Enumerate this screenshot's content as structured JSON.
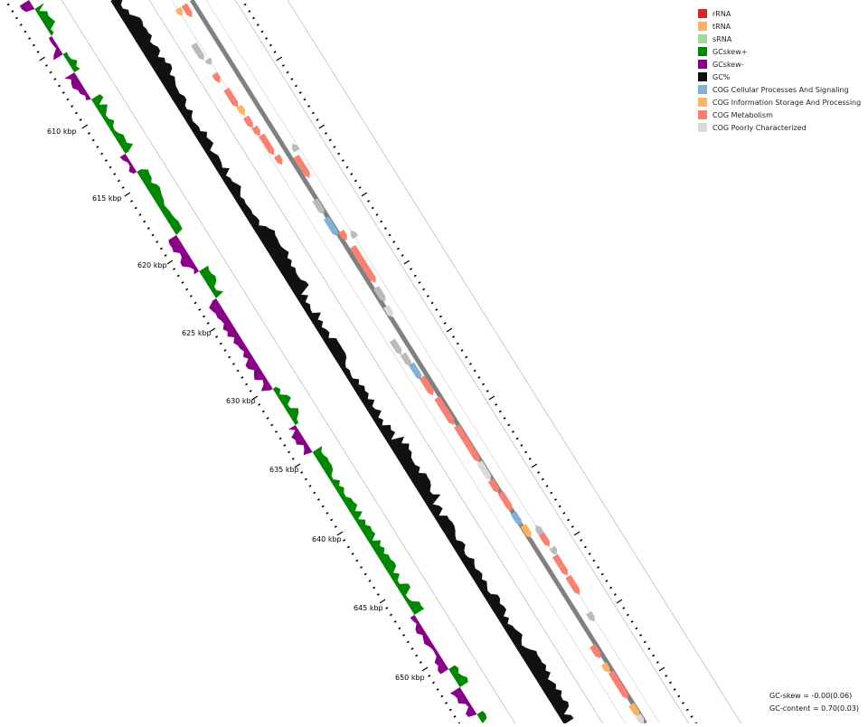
{
  "legend": [
    {
      "label": "rRNA",
      "color": "#d62728"
    },
    {
      "label": "tRNA",
      "color": "#fdae6b"
    },
    {
      "label": "sRNA",
      "color": "#a1d99b"
    },
    {
      "label": "GCskew+",
      "color": "#008800"
    },
    {
      "label": "GCskew-",
      "color": "#880088"
    },
    {
      "label": "GC%",
      "color": "#111111"
    },
    {
      "label": "COG Cellular Processes And Signaling",
      "color": "#7fb2d5"
    },
    {
      "label": "COG Information Storage And Processing",
      "color": "#fdb462"
    },
    {
      "label": "COG Metabolism",
      "color": "#fb8072"
    },
    {
      "label": "COG Poorly Characterized",
      "color": "#d9d9d9"
    }
  ],
  "ticks": {
    "labels": [
      "610 kbp",
      "615 kbp",
      "620 kbp",
      "625 kbp",
      "630 kbp",
      "635 kbp",
      "640 kbp",
      "645 kbp",
      "650 kbp"
    ]
  },
  "stats": {
    "gc_skew": "GC-skew = -0.00(0.06)",
    "gc_content": "GC-content = 0.70(0.03)"
  },
  "colors": {
    "backbone": "#808080",
    "ring_lines": "#aaaaaa",
    "gray_feature": "#bbbbbb"
  }
}
